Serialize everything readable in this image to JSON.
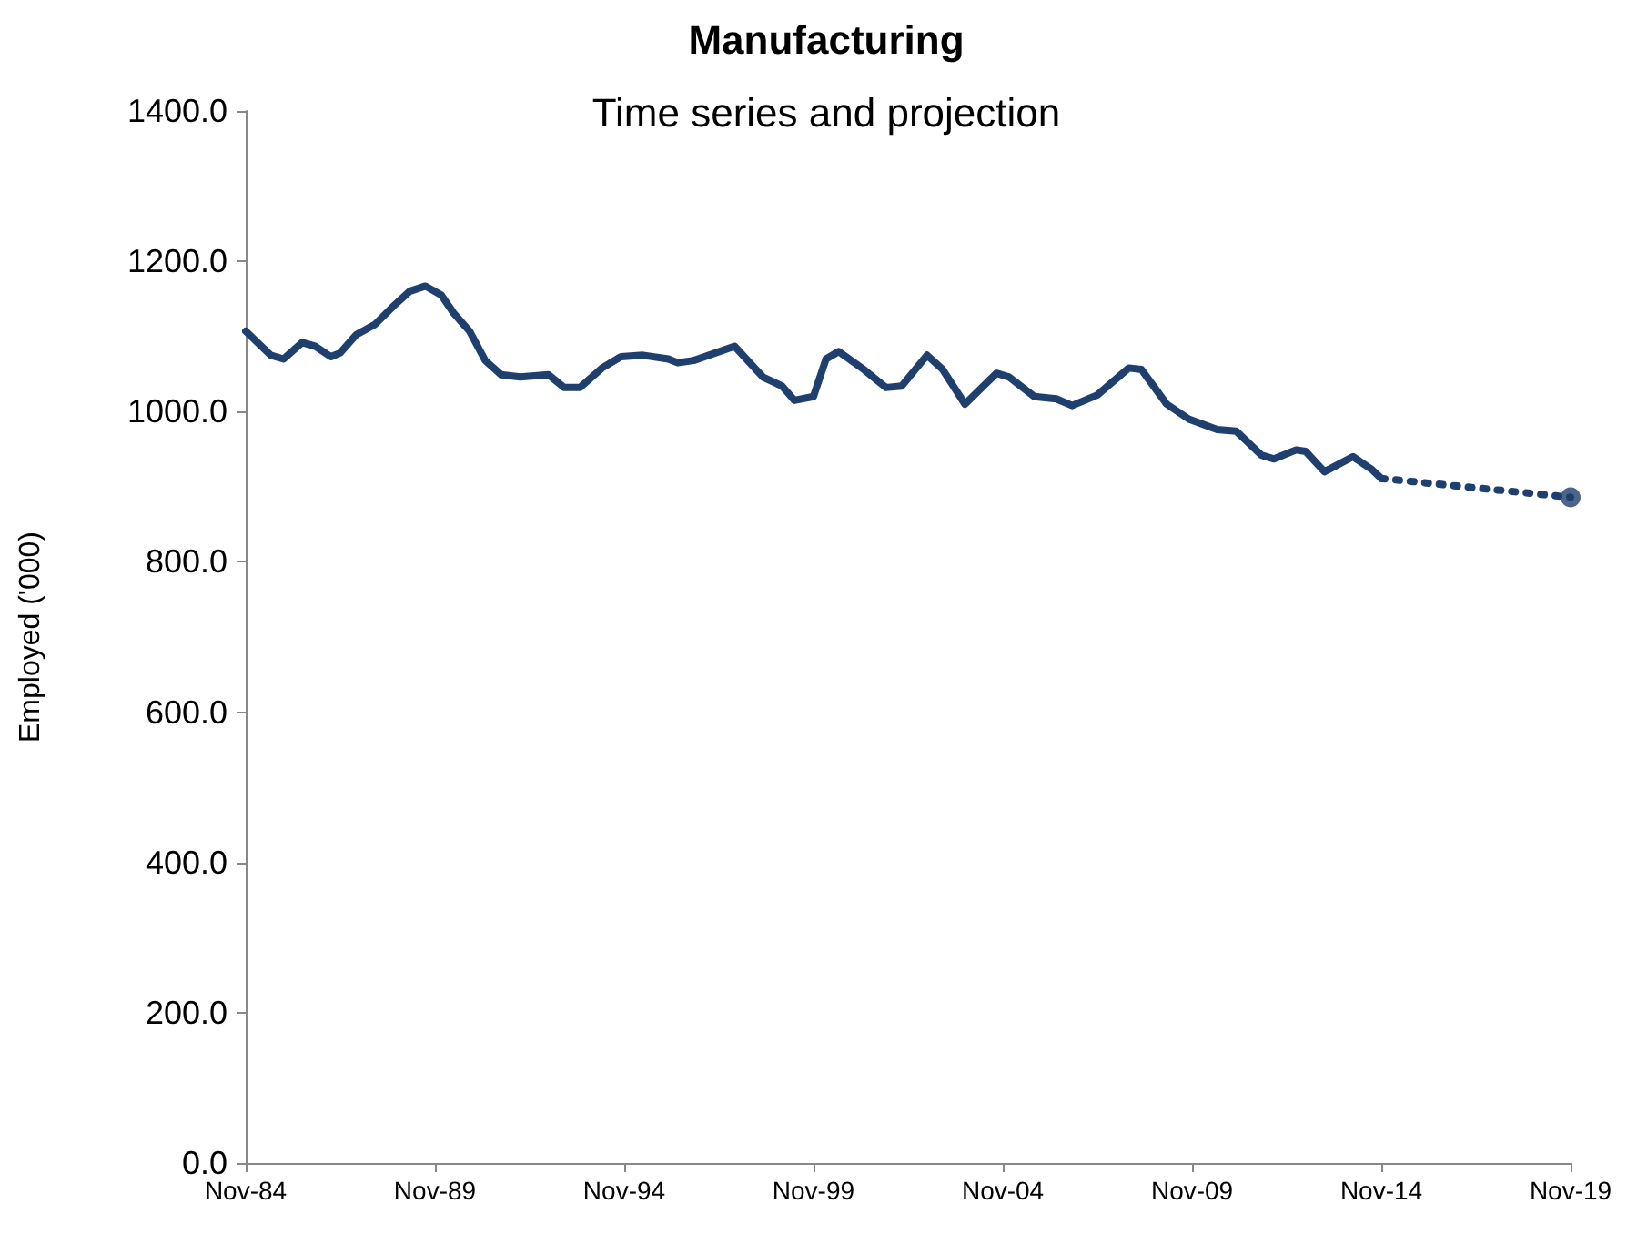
{
  "chart_data": {
    "type": "line",
    "title": "Manufacturing",
    "subtitle": "Time series and projection",
    "ylabel": "Employed ('000)",
    "xlim": [
      "1984-11",
      "2019-11"
    ],
    "xticks": [
      {
        "value": "1984-11",
        "label": "Nov-84"
      },
      {
        "value": "1989-11",
        "label": "Nov-89"
      },
      {
        "value": "1994-11",
        "label": "Nov-94"
      },
      {
        "value": "1999-11",
        "label": "Nov-99"
      },
      {
        "value": "2004-11",
        "label": "Nov-04"
      },
      {
        "value": "2009-11",
        "label": "Nov-09"
      },
      {
        "value": "2014-11",
        "label": "Nov-14"
      },
      {
        "value": "2019-11",
        "label": "Nov-19"
      }
    ],
    "ylim": [
      0,
      1400
    ],
    "yticks": [
      {
        "value": 0,
        "label": "0.0"
      },
      {
        "value": 200,
        "label": "200.0"
      },
      {
        "value": 400,
        "label": "400.0"
      },
      {
        "value": 600,
        "label": "600.0"
      },
      {
        "value": 800,
        "label": "800.0"
      },
      {
        "value": 1000,
        "label": "1000.0"
      },
      {
        "value": 1200,
        "label": "1200.0"
      },
      {
        "value": 1400,
        "label": "1400.0"
      }
    ],
    "grid": false,
    "series": [
      {
        "color": "#1f3f6e",
        "line_style": "solid",
        "marker": "none",
        "x": [
          "1984-11",
          "1985-07",
          "1985-11",
          "1986-05",
          "1986-09",
          "1987-02",
          "1987-05",
          "1987-10",
          "1988-04",
          "1988-10",
          "1989-03",
          "1989-08",
          "1990-01",
          "1990-05",
          "1990-10",
          "1991-03",
          "1991-08",
          "1992-02",
          "1992-11",
          "1993-04",
          "1993-09",
          "1994-04",
          "1994-10",
          "1995-05",
          "1996-01",
          "1996-04",
          "1996-09",
          "1997-10",
          "1998-07",
          "1999-01",
          "1999-05",
          "1999-11",
          "2000-03",
          "2000-07",
          "2001-03",
          "2001-10",
          "2002-03",
          "2002-11",
          "2003-04",
          "2003-11",
          "2004-09",
          "2005-01",
          "2005-09",
          "2006-04",
          "2006-09",
          "2007-05",
          "2008-03",
          "2008-07",
          "2009-03",
          "2009-10",
          "2010-07",
          "2011-01",
          "2011-09",
          "2012-01",
          "2012-08",
          "2012-11",
          "2013-05",
          "2014-02",
          "2014-08",
          "2014-11"
        ],
        "values": [
          1107,
          1075,
          1070,
          1092,
          1087,
          1073,
          1078,
          1102,
          1116,
          1141,
          1160,
          1167,
          1155,
          1131,
          1107,
          1068,
          1049,
          1046,
          1049,
          1032,
          1032,
          1058,
          1073,
          1075,
          1070,
          1065,
          1068,
          1087,
          1046,
          1034,
          1015,
          1020,
          1070,
          1080,
          1056,
          1032,
          1034,
          1075,
          1056,
          1010,
          1051,
          1046,
          1020,
          1017,
          1008,
          1022,
          1058,
          1056,
          1010,
          990,
          976,
          974,
          942,
          937,
          949,
          947,
          920,
          940,
          923,
          911
        ]
      },
      {
        "color": "#1f3f6e",
        "line_style": "dotted",
        "marker": "none",
        "x": [
          "2014-11",
          "2019-11"
        ],
        "values": [
          911,
          886
        ]
      },
      {
        "type": "scatter",
        "color": "#1f3f6e",
        "marker": "circle",
        "x": [
          "2019-11"
        ],
        "values": [
          886
        ]
      }
    ]
  }
}
